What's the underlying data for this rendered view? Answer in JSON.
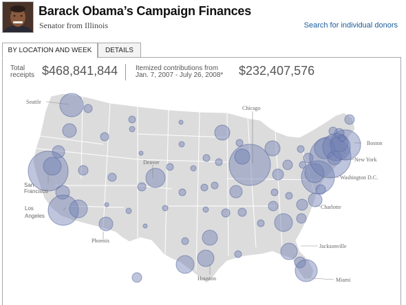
{
  "header": {
    "title": "Barack Obama’s Campaign Finances",
    "subtitle": "Senator from Illinois",
    "search_link": "Search for individual donors"
  },
  "tabs": [
    {
      "label": "BY LOCATION AND WEEK",
      "active": true
    },
    {
      "label": "DETAILS",
      "active": false
    }
  ],
  "stats": {
    "total_label_line1": "Total",
    "total_label_line2": "receipts",
    "total_value": "$468,841,844",
    "itemized_label_line1": "Itemized contributions from",
    "itemized_label_line2": "Jan. 7, 2007 - July 26, 2008*",
    "itemized_value": "$232,407,576"
  },
  "map": {
    "bubble_color": "#6f7fb3",
    "land_color": "#dcdcdc",
    "cities": {
      "seattle": "Seattle",
      "chicago": "Chicago",
      "boston": "Boston",
      "new_york": "New York",
      "denver": "Denver",
      "san_francisco_1": "San",
      "san_francisco_2": "Francisco",
      "washington": "Washington D.C.",
      "los_angeles_1": "Los",
      "los_angeles_2": "Angeles",
      "charlotte": "Charlotte",
      "phoenix": "Phoenix",
      "jacksonville": "Jacksonville",
      "houston": "Houston",
      "miami": "Miami"
    }
  }
}
